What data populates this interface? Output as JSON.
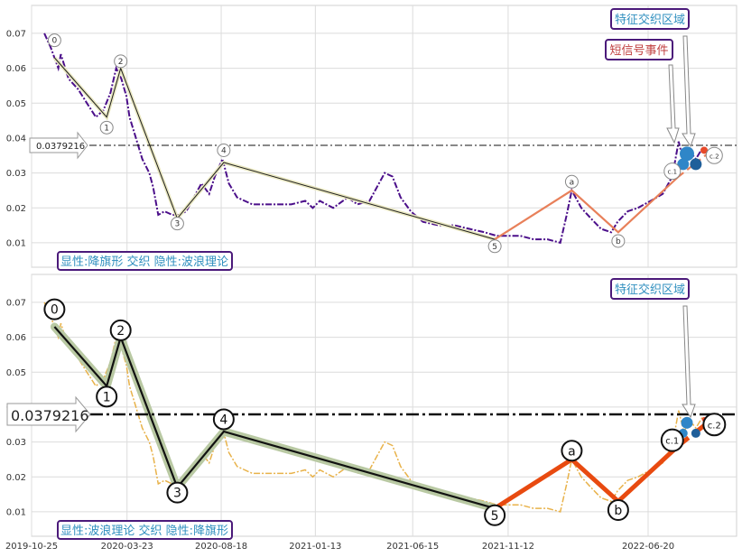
{
  "chart_data": [
    {
      "type": "line",
      "panel": "top",
      "ylim": [
        0.003,
        0.078
      ],
      "y_ticks": [
        "0.01",
        "0.02",
        "0.03",
        "0.04",
        "0.05",
        "0.06",
        "0.07"
      ],
      "grid": true,
      "hline_label": "0.0379216",
      "hline_value": 0.0379216,
      "price_series": [
        [
          "2019-11-14",
          0.07
        ],
        [
          "2019-11-24",
          0.066
        ],
        [
          "2019-12-06",
          0.06
        ],
        [
          "2019-12-10",
          0.064
        ],
        [
          "2019-12-22",
          0.057
        ],
        [
          "2020-01-06",
          0.054
        ],
        [
          "2020-01-20",
          0.05
        ],
        [
          "2020-02-03",
          0.046
        ],
        [
          "2020-02-15",
          0.048
        ],
        [
          "2020-02-26",
          0.053
        ],
        [
          "2020-03-06",
          0.06
        ],
        [
          "2020-03-14",
          0.057
        ],
        [
          "2020-03-22",
          0.052
        ],
        [
          "2020-03-27",
          0.046
        ],
        [
          "2020-04-06",
          0.04
        ],
        [
          "2020-04-16",
          0.034
        ],
        [
          "2020-04-27",
          0.03
        ],
        [
          "2020-05-03",
          0.026
        ],
        [
          "2020-05-11",
          0.018
        ],
        [
          "2020-05-21",
          0.019
        ],
        [
          "2020-06-02",
          0.018
        ],
        [
          "2020-06-13",
          0.018
        ],
        [
          "2020-06-24",
          0.019
        ],
        [
          "2020-07-06",
          0.023
        ],
        [
          "2020-07-18",
          0.027
        ],
        [
          "2020-07-30",
          0.024
        ],
        [
          "2020-08-08",
          0.029
        ],
        [
          "2020-08-20",
          0.034
        ],
        [
          "2020-08-30",
          0.027
        ],
        [
          "2020-09-12",
          0.023
        ],
        [
          "2020-10-06",
          0.021
        ],
        [
          "2020-11-04",
          0.021
        ],
        [
          "2020-12-06",
          0.021
        ],
        [
          "2020-12-28",
          0.022
        ],
        [
          "2021-01-09",
          0.02
        ],
        [
          "2021-01-20",
          0.022
        ],
        [
          "2021-02-10",
          0.02
        ],
        [
          "2021-03-05",
          0.023
        ],
        [
          "2021-03-20",
          0.021
        ],
        [
          "2021-04-08",
          0.022
        ],
        [
          "2021-04-23",
          0.027
        ],
        [
          "2021-05-02",
          0.03
        ],
        [
          "2021-05-14",
          0.029
        ],
        [
          "2021-05-27",
          0.023
        ],
        [
          "2021-06-12",
          0.019
        ],
        [
          "2021-07-01",
          0.016
        ],
        [
          "2021-07-26",
          0.015
        ],
        [
          "2021-08-20",
          0.015
        ],
        [
          "2021-09-12",
          0.014
        ],
        [
          "2021-10-06",
          0.013
        ],
        [
          "2021-10-25",
          0.012
        ],
        [
          "2021-11-12",
          0.012
        ],
        [
          "2021-12-01",
          0.012
        ],
        [
          "2021-12-22",
          0.011
        ],
        [
          "2022-01-13",
          0.011
        ],
        [
          "2022-02-02",
          0.01
        ],
        [
          "2022-02-12",
          0.018
        ],
        [
          "2022-02-20",
          0.025
        ],
        [
          "2022-03-07",
          0.02
        ],
        [
          "2022-03-22",
          0.017
        ],
        [
          "2022-04-07",
          0.014
        ],
        [
          "2022-04-23",
          0.013
        ],
        [
          "2022-05-03",
          0.016
        ],
        [
          "2022-05-19",
          0.019
        ],
        [
          "2022-06-04",
          0.02
        ],
        [
          "2022-06-24",
          0.022
        ],
        [
          "2022-07-13",
          0.024
        ],
        [
          "2022-07-28",
          0.029
        ],
        [
          "2022-08-07",
          0.039
        ],
        [
          "2022-08-15",
          0.033
        ],
        [
          "2022-08-25",
          0.036
        ],
        [
          "2022-09-03",
          0.034
        ],
        [
          "2022-09-13",
          0.037
        ]
      ],
      "wave_lines": [
        {
          "name": "impulse",
          "color": "#1e1e1e",
          "points": [
            [
              "2019-11-30",
              0.063
            ],
            [
              "2020-02-20",
              0.046
            ],
            [
              "2020-03-13",
              0.06
            ],
            [
              "2020-06-10",
              0.017
            ],
            [
              "2020-08-22",
              0.033
            ],
            [
              "2021-10-22",
              0.011
            ]
          ]
        },
        {
          "name": "correction",
          "color": "#e8805a",
          "points": [
            [
              "2021-10-22",
              0.011
            ],
            [
              "2022-02-20",
              0.025
            ],
            [
              "2022-05-04",
              0.013
            ],
            [
              "2022-08-07",
              0.029
            ],
            [
              "2022-10-02",
              0.037
            ]
          ]
        }
      ],
      "point_labels": [
        {
          "text": "0",
          "x": "2019-11-30",
          "y": 0.068
        },
        {
          "text": "1",
          "x": "2020-02-20",
          "y": 0.043
        },
        {
          "text": "2",
          "x": "2020-03-13",
          "y": 0.062
        },
        {
          "text": "3",
          "x": "2020-06-10",
          "y": 0.0155
        },
        {
          "text": "4",
          "x": "2020-08-22",
          "y": 0.0365
        },
        {
          "text": "5",
          "x": "2021-10-22",
          "y": 0.009
        },
        {
          "text": "a",
          "x": "2022-02-20",
          "y": 0.0275
        },
        {
          "text": "b",
          "x": "2022-05-04",
          "y": 0.0105
        },
        {
          "text": "c.1",
          "x": "2022-07-28",
          "y": 0.0305
        },
        {
          "text": "c.2",
          "x": "2022-10-02",
          "y": 0.035
        }
      ],
      "markers": [
        {
          "x": "2022-08-20",
          "y": 0.0355,
          "size": "large",
          "color": "#2f86c8"
        },
        {
          "x": "2022-08-14",
          "y": 0.0325,
          "size": "medium",
          "color": "#2f86c8"
        },
        {
          "x": "2022-09-03",
          "y": 0.0325,
          "size": "medium",
          "color": "#1f5f9a"
        },
        {
          "x": "2022-09-16",
          "y": 0.0365,
          "size": "small",
          "color": "#e84a2a"
        }
      ],
      "annotations": [
        {
          "text": "特征交织区域",
          "color": "#2f8fbf"
        },
        {
          "text": "短信号事件",
          "color": "#c04040"
        }
      ],
      "caption": "显性:降旗形 交织 隐性:波浪理论"
    },
    {
      "type": "line",
      "panel": "bottom",
      "ylim": [
        0.003,
        0.078
      ],
      "y_ticks": [
        "0.01",
        "0.02",
        "0.03",
        "0.04",
        "0.05",
        "0.06",
        "0.07"
      ],
      "x_ticks": [
        "2019-10-25",
        "2020-03-23",
        "2020-08-18",
        "2021-01-13",
        "2021-06-15",
        "2021-11-12",
        "2022-06-20"
      ],
      "grid": true,
      "hline_label": "0.0379216",
      "hline_value": 0.0379216,
      "price_series_color": "#e8b24a",
      "annotations": [
        {
          "text": "特征交织区域",
          "color": "#2f8fbf"
        }
      ],
      "caption": "显性:波浪理论 交织 隐性:降旗形"
    }
  ]
}
